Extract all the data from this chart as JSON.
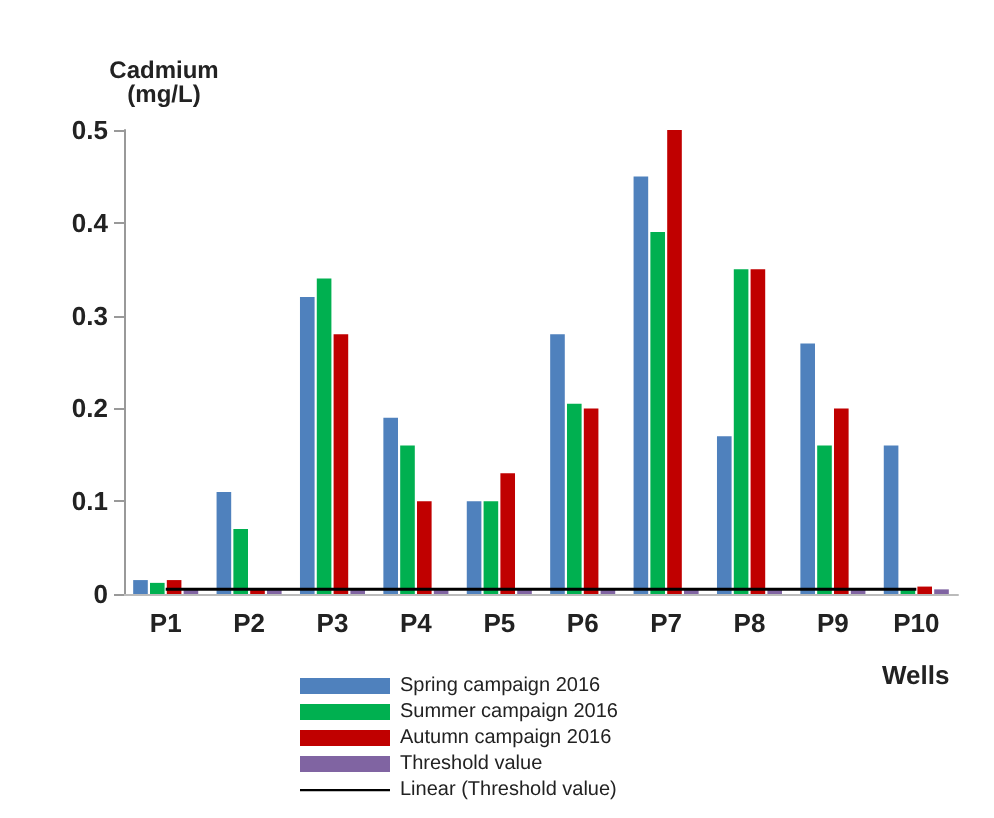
{
  "chart_data": {
    "type": "bar",
    "ylabel": "Cadmium\n(mg/L)",
    "xlabel": "Wells",
    "categories": [
      "P1",
      "P2",
      "P3",
      "P4",
      "P5",
      "P6",
      "P7",
      "P8",
      "P9",
      "P10"
    ],
    "series": [
      {
        "name": "Spring campaign 2016",
        "color": "#4f81bd",
        "values": [
          0.015,
          0.11,
          0.32,
          0.19,
          0.1,
          0.28,
          0.45,
          0.17,
          0.27,
          0.16
        ]
      },
      {
        "name": "Summer campaign 2016",
        "color": "#00b050",
        "values": [
          0.012,
          0.07,
          0.34,
          0.16,
          0.1,
          0.205,
          0.39,
          0.35,
          0.16,
          0.005
        ]
      },
      {
        "name": "Autumn campaign 2016",
        "color": "#c00000",
        "values": [
          0.015,
          0.005,
          0.28,
          0.1,
          0.13,
          0.2,
          0.5,
          0.35,
          0.2,
          0.008
        ]
      },
      {
        "name": "Threshold value",
        "color": "#8064a2",
        "values": [
          0.005,
          0.005,
          0.005,
          0.005,
          0.005,
          0.005,
          0.005,
          0.005,
          0.005,
          0.005
        ]
      },
      {
        "name": "Linear (Threshold value)",
        "type": "line",
        "color": "#000000",
        "marker": "none",
        "line_style": "solid",
        "x": [
          "P1",
          "P2",
          "P3",
          "P4",
          "P5",
          "P6",
          "P7",
          "P8",
          "P9",
          "P10"
        ],
        "values": [
          0.005,
          0.005,
          0.005,
          0.005,
          0.005,
          0.005,
          0.005,
          0.005,
          0.005,
          0.005
        ]
      }
    ],
    "ylim": [
      0,
      0.5
    ],
    "yticks": [
      0,
      0.1,
      0.2,
      0.3,
      0.4,
      0.5
    ],
    "grid": false,
    "legend": "bottom"
  }
}
